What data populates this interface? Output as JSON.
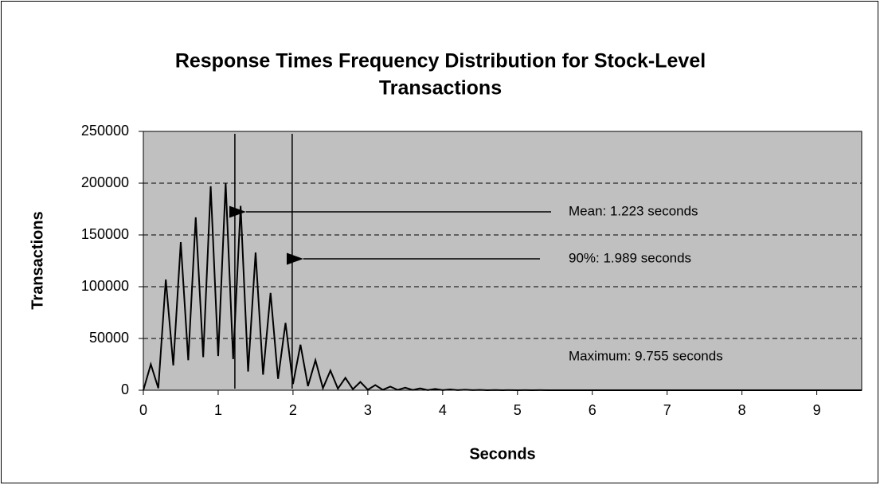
{
  "chart_data": {
    "type": "line",
    "title": [
      "Response Times Frequency Distribution for Stock-Level",
      "Transactions"
    ],
    "x_label": "Seconds",
    "y_label": "Transactions",
    "x": [
      0,
      0.1,
      0.2,
      0.3,
      0.4,
      0.5,
      0.6,
      0.7,
      0.8,
      0.9,
      1,
      1.1,
      1.2,
      1.3,
      1.4,
      1.5,
      1.6,
      1.7,
      1.8,
      1.9,
      2,
      2.1,
      2.2,
      2.3,
      2.4,
      2.5,
      2.6,
      2.7,
      2.8,
      2.9,
      3,
      3.1,
      3.2,
      3.3,
      3.4,
      3.5,
      3.6,
      3.7,
      3.8,
      3.9,
      4,
      4.1,
      4.2,
      4.3,
      4.4,
      4.5,
      4.6,
      4.7,
      4.8,
      4.9,
      5,
      5.1,
      5.2,
      5.3,
      5.4,
      5.5,
      5.6,
      5.7,
      5.8,
      5.9,
      6,
      6.1,
      6.2,
      6.3,
      6.4,
      6.5,
      6.6,
      6.7,
      6.8,
      6.9,
      7,
      7.1,
      7.2,
      7.3,
      7.4,
      7.5,
      7.6,
      7.7,
      7.8,
      7.9,
      8,
      8.1,
      8.2,
      8.3,
      8.4,
      8.5,
      8.6,
      8.7,
      8.8,
      8.9,
      9,
      9.1,
      9.2,
      9.3,
      9.4,
      9.5,
      9.6
    ],
    "values": [
      0,
      25000,
      2000,
      107000,
      24000,
      143000,
      29000,
      167000,
      32000,
      197000,
      33000,
      200000,
      30000,
      178000,
      18000,
      133000,
      15000,
      94000,
      11000,
      65000,
      6000,
      44000,
      4000,
      29000,
      2000,
      19000,
      1500,
      12000,
      1000,
      8000,
      500,
      5000,
      400,
      3500,
      300,
      2500,
      200,
      1800,
      150,
      1200,
      100,
      800,
      80,
      500,
      60,
      300,
      40,
      200,
      30,
      100,
      20,
      80,
      10,
      50,
      0,
      30,
      0,
      20,
      0,
      10,
      0,
      0,
      0,
      0,
      0,
      0,
      0,
      0,
      0,
      0,
      0,
      0,
      0,
      0,
      0,
      0,
      0,
      0,
      0,
      0,
      0,
      0,
      0,
      0,
      0,
      0,
      0,
      0,
      0,
      0,
      0,
      0,
      0,
      0,
      0,
      0,
      0
    ],
    "color": "#000000",
    "xlim": [
      0,
      9.6
    ],
    "ylim": [
      0,
      250000
    ],
    "xticks": [
      0,
      1,
      2,
      3,
      4,
      5,
      6,
      7,
      8,
      9
    ],
    "yticks": [
      0,
      50000,
      100000,
      150000,
      200000,
      250000
    ],
    "grid": true,
    "annotations": [
      {
        "text": "Mean: 1.223 seconds",
        "x": 1.223
      },
      {
        "text": "90%: 1.989 seconds",
        "x": 1.989
      },
      {
        "text": "Maximum: 9.755 seconds"
      }
    ]
  }
}
